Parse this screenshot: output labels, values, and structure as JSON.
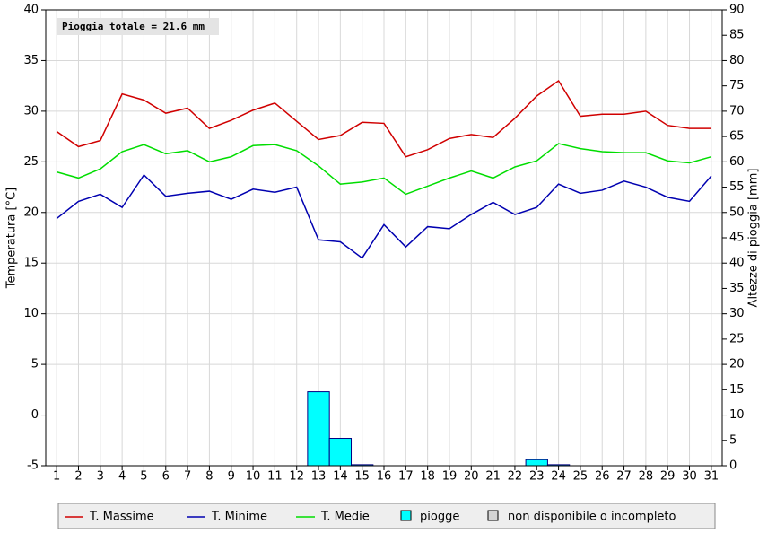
{
  "chart_data": {
    "type": "line",
    "annotation": "Pioggia totale = 21.6 mm",
    "ylabel": "Temperatura [°C]",
    "y2label": "Altezze di pioggia [mm]",
    "categories": [
      "1",
      "2",
      "3",
      "4",
      "5",
      "6",
      "7",
      "8",
      "9",
      "10",
      "11",
      "12",
      "13",
      "14",
      "15",
      "16",
      "17",
      "18",
      "19",
      "20",
      "21",
      "22",
      "23",
      "24",
      "25",
      "26",
      "27",
      "28",
      "29",
      "30",
      "31"
    ],
    "series": [
      {
        "name": "T. Massime",
        "type": "line",
        "color": "#d00000",
        "values": [
          28.0,
          26.5,
          27.1,
          31.7,
          31.1,
          29.8,
          30.3,
          28.3,
          29.1,
          30.1,
          30.8,
          29.0,
          27.2,
          27.6,
          28.9,
          28.8,
          25.5,
          26.2,
          27.3,
          27.7,
          27.4,
          29.3,
          31.5,
          33.0,
          29.5,
          29.7,
          29.7,
          30.0,
          28.6,
          28.3,
          28.3
        ]
      },
      {
        "name": "T. Minime",
        "type": "line",
        "color": "#0000b0",
        "values": [
          19.4,
          21.1,
          21.8,
          20.5,
          23.7,
          21.6,
          21.9,
          22.1,
          21.3,
          22.3,
          22.0,
          22.5,
          17.3,
          17.1,
          15.5,
          18.8,
          16.6,
          18.6,
          18.4,
          19.8,
          21.0,
          19.8,
          20.5,
          22.8,
          21.9,
          22.2,
          23.1,
          22.5,
          21.5,
          21.1,
          23.6
        ]
      },
      {
        "name": "T. Medie",
        "type": "line",
        "color": "#00dd00",
        "values": [
          24.0,
          23.4,
          24.3,
          26.0,
          26.7,
          25.8,
          26.1,
          25.0,
          25.5,
          26.6,
          26.7,
          26.1,
          24.6,
          22.8,
          23.0,
          23.4,
          21.8,
          22.6,
          23.4,
          24.1,
          23.4,
          24.5,
          25.1,
          26.8,
          26.3,
          26.0,
          25.9,
          25.9,
          25.1,
          24.9,
          25.5
        ]
      },
      {
        "name": "piogge",
        "type": "bar",
        "axis": "y2",
        "color": "#00ffff",
        "values": [
          0,
          0,
          0,
          0,
          0,
          0,
          0,
          0,
          0,
          0,
          0,
          0,
          14.6,
          5.4,
          0.2,
          0,
          0,
          0,
          0,
          0,
          0,
          0,
          1.2,
          0.2,
          0,
          0,
          0,
          0,
          0,
          0,
          0
        ]
      }
    ],
    "na_legend": {
      "name": "non disponibile o incompleto",
      "color": "#d4d4d4"
    },
    "ylim": [
      -5,
      40
    ],
    "yticks": [
      -5,
      0,
      5,
      10,
      15,
      20,
      25,
      30,
      35,
      40
    ],
    "y2lim": [
      0,
      90
    ],
    "y2ticks": [
      0,
      5,
      10,
      15,
      20,
      25,
      30,
      35,
      40,
      45,
      50,
      55,
      60,
      65,
      70,
      75,
      80,
      85,
      90
    ],
    "grid": true
  }
}
